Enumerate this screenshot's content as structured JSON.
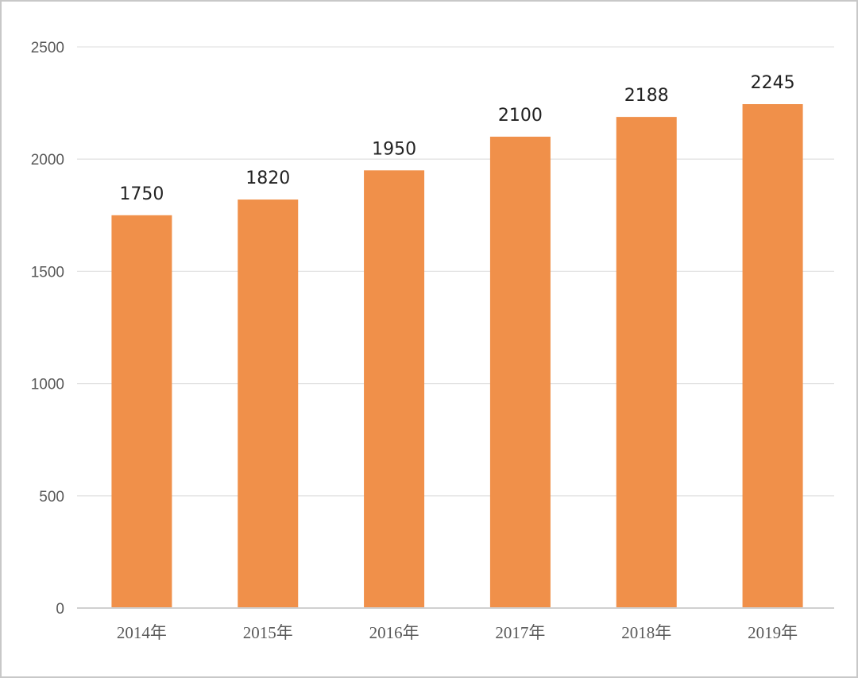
{
  "chart_data": {
    "type": "bar",
    "categories": [
      "2014年",
      "2015年",
      "2016年",
      "2017年",
      "2018年",
      "2019年"
    ],
    "values": [
      1750,
      1820,
      1950,
      2100,
      2188,
      2245
    ],
    "data_labels": [
      "1750",
      "1820",
      "1950",
      "2100",
      "2188",
      "2245"
    ],
    "title": "",
    "xlabel": "",
    "ylabel": "",
    "ylim": [
      0,
      2500
    ],
    "yticks": [
      "0",
      "500",
      "1000",
      "1500",
      "2000",
      "2500"
    ],
    "grid": true,
    "legend": "none",
    "colors": {
      "bar": "#F0904A",
      "grid": "#e3e3e3",
      "axis": "#d0d0d0"
    }
  }
}
